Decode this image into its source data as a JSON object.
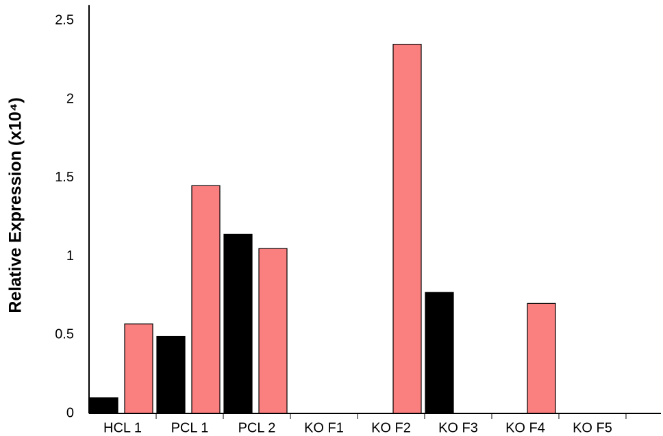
{
  "chart_data": {
    "type": "bar",
    "y_label": "Relative Expression (x10⁴)",
    "categories": [
      "HCL 1",
      "PCL 1",
      "PCL 2",
      "KO F1",
      "KO F2",
      "KO F3",
      "KO F4",
      "KO F5"
    ],
    "series": [
      {
        "color": "#000000",
        "values": [
          0.1,
          0.49,
          1.14,
          0,
          0,
          0.77,
          0,
          0
        ]
      },
      {
        "color": "#fa7f7f",
        "values": [
          0.57,
          1.45,
          1.05,
          0,
          2.35,
          0,
          0.7,
          0
        ]
      }
    ],
    "ylim": [
      0,
      2.6
    ],
    "yticks": [
      0,
      0.5,
      1,
      1.5,
      2,
      2.5
    ],
    "grid": false
  }
}
